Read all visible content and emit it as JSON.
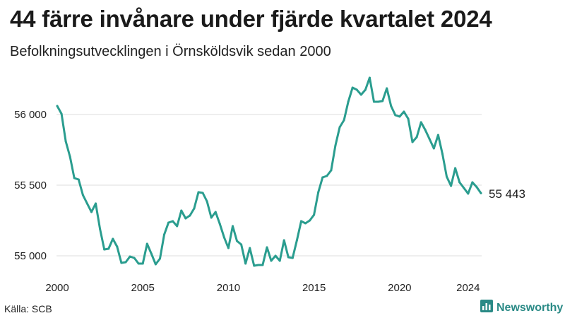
{
  "title": "44 färre invånare under fjärde kvartalet 2024",
  "subtitle": "Befolkningsutvecklingen i Örnsköldsvik sedan 2000",
  "source": "Källa: SCB",
  "brand": {
    "name": "Newsworthy",
    "icon": "bar-chart-icon"
  },
  "colors": {
    "line": "#2a9d8f",
    "grid": "#dddddd",
    "brand": "#2a8a86"
  },
  "chart_data": {
    "type": "line",
    "title": "44 färre invånare under fjärde kvartalet 2024",
    "xlabel": "",
    "ylabel": "",
    "grid": true,
    "ylim": [
      54930,
      56300
    ],
    "xlim": [
      2000,
      2024.75
    ],
    "y_ticks": [
      55000,
      55500,
      56000
    ],
    "y_tick_labels": [
      "55 000",
      "55 500",
      "56 000"
    ],
    "x_ticks": [
      2000,
      2005,
      2010,
      2015,
      2020,
      2024
    ],
    "x_tick_labels": [
      "2000",
      "2005",
      "2010",
      "2015",
      "2020",
      "2024"
    ],
    "end_label": "55 443",
    "series": [
      {
        "values": [
          [
            2000.0,
            56060
          ],
          [
            2000.25,
            56005
          ],
          [
            2000.5,
            55810
          ],
          [
            2000.75,
            55700
          ],
          [
            2001.0,
            55550
          ],
          [
            2001.25,
            55540
          ],
          [
            2001.5,
            55430
          ],
          [
            2001.75,
            55370
          ],
          [
            2002.0,
            55310
          ],
          [
            2002.25,
            55370
          ],
          [
            2002.5,
            55190
          ],
          [
            2002.75,
            55045
          ],
          [
            2003.0,
            55050
          ],
          [
            2003.25,
            55120
          ],
          [
            2003.5,
            55065
          ],
          [
            2003.75,
            54950
          ],
          [
            2004.0,
            54955
          ],
          [
            2004.25,
            54995
          ],
          [
            2004.5,
            54985
          ],
          [
            2004.75,
            54945
          ],
          [
            2005.0,
            54945
          ],
          [
            2005.25,
            55085
          ],
          [
            2005.5,
            55015
          ],
          [
            2005.75,
            54940
          ],
          [
            2006.0,
            54980
          ],
          [
            2006.25,
            55150
          ],
          [
            2006.5,
            55235
          ],
          [
            2006.75,
            55245
          ],
          [
            2007.0,
            55210
          ],
          [
            2007.25,
            55320
          ],
          [
            2007.5,
            55265
          ],
          [
            2007.75,
            55285
          ],
          [
            2008.0,
            55335
          ],
          [
            2008.25,
            55450
          ],
          [
            2008.5,
            55445
          ],
          [
            2008.75,
            55385
          ],
          [
            2009.0,
            55270
          ],
          [
            2009.25,
            55310
          ],
          [
            2009.5,
            55225
          ],
          [
            2009.75,
            55130
          ],
          [
            2010.0,
            55055
          ],
          [
            2010.25,
            55210
          ],
          [
            2010.5,
            55105
          ],
          [
            2010.75,
            55080
          ],
          [
            2011.0,
            54945
          ],
          [
            2011.25,
            55055
          ],
          [
            2011.5,
            54930
          ],
          [
            2011.75,
            54935
          ],
          [
            2012.0,
            54935
          ],
          [
            2012.25,
            55060
          ],
          [
            2012.5,
            54965
          ],
          [
            2012.75,
            55000
          ],
          [
            2013.0,
            54965
          ],
          [
            2013.25,
            55110
          ],
          [
            2013.5,
            54990
          ],
          [
            2013.75,
            54985
          ],
          [
            2014.0,
            55110
          ],
          [
            2014.25,
            55245
          ],
          [
            2014.5,
            55230
          ],
          [
            2014.75,
            55250
          ],
          [
            2015.0,
            55290
          ],
          [
            2015.25,
            55450
          ],
          [
            2015.5,
            55555
          ],
          [
            2015.75,
            55565
          ],
          [
            2016.0,
            55605
          ],
          [
            2016.25,
            55780
          ],
          [
            2016.5,
            55910
          ],
          [
            2016.75,
            55960
          ],
          [
            2017.0,
            56090
          ],
          [
            2017.25,
            56190
          ],
          [
            2017.5,
            56175
          ],
          [
            2017.75,
            56140
          ],
          [
            2018.0,
            56175
          ],
          [
            2018.25,
            56260
          ],
          [
            2018.5,
            56090
          ],
          [
            2018.75,
            56090
          ],
          [
            2019.0,
            56095
          ],
          [
            2019.25,
            56185
          ],
          [
            2019.5,
            56060
          ],
          [
            2019.75,
            55995
          ],
          [
            2020.0,
            55985
          ],
          [
            2020.25,
            56020
          ],
          [
            2020.5,
            55970
          ],
          [
            2020.75,
            55805
          ],
          [
            2021.0,
            55840
          ],
          [
            2021.25,
            55945
          ],
          [
            2021.5,
            55890
          ],
          [
            2021.75,
            55825
          ],
          [
            2022.0,
            55760
          ],
          [
            2022.25,
            55855
          ],
          [
            2022.5,
            55720
          ],
          [
            2022.75,
            55560
          ],
          [
            2023.0,
            55495
          ],
          [
            2023.25,
            55620
          ],
          [
            2023.5,
            55520
          ],
          [
            2023.75,
            55480
          ],
          [
            2024.0,
            55440
          ],
          [
            2024.25,
            55520
          ],
          [
            2024.5,
            55487
          ],
          [
            2024.75,
            55443
          ]
        ]
      }
    ]
  }
}
